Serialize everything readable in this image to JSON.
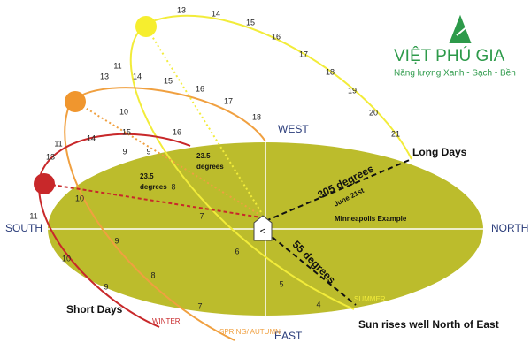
{
  "logo": {
    "brand": "VIỆT PHÚ GIA",
    "tagline": "Năng lượng Xanh - Sạch - Bền"
  },
  "directions": {
    "west": "WEST",
    "east": "EAST",
    "south": "SOUTH",
    "north": "NORTH"
  },
  "paths": [
    {
      "name": "SUMMER",
      "hours": [
        13,
        14,
        15,
        16,
        17,
        18,
        19,
        20,
        21,
        11,
        10,
        9,
        8,
        7,
        6,
        5,
        4
      ]
    },
    {
      "name": "SPRING/ AUTUMN",
      "hours": [
        13,
        14,
        15,
        16,
        17,
        18,
        9,
        9,
        8,
        7
      ]
    },
    {
      "name": "WINTER",
      "hours": [
        11,
        13,
        14,
        15,
        16,
        10,
        11,
        10,
        9
      ]
    }
  ],
  "labels": {
    "long_days": "Long Days",
    "short_days": "Short Days",
    "azimuth_summer": "305 degrees",
    "date": "June 21st",
    "azimuth_rise": "55 degrees",
    "location": "Minneapolis Example",
    "tilt_left": "23.5",
    "tilt_left_unit": "degrees",
    "tilt_right": "23.5",
    "tilt_right_unit": "degrees",
    "note": "Sun rises well North of East"
  }
}
